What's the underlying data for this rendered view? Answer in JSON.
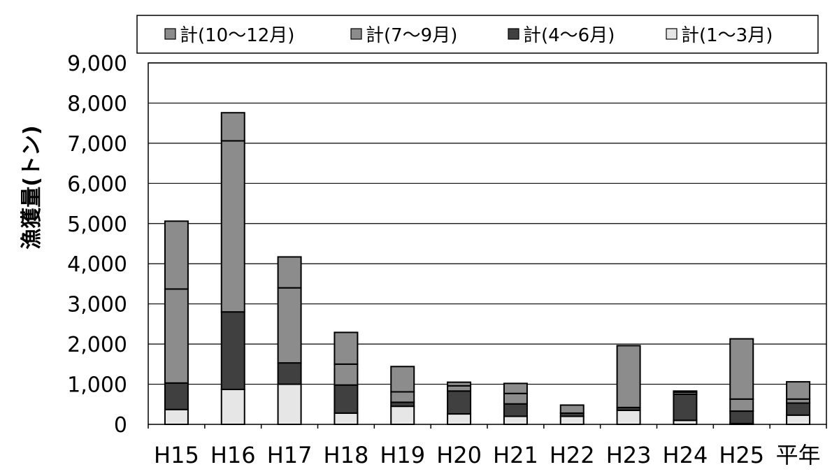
{
  "chart_data": {
    "type": "bar",
    "stacked": true,
    "categories": [
      "H15",
      "H16",
      "H17",
      "H18",
      "H19",
      "H20",
      "H21",
      "H22",
      "H23",
      "H24",
      "H25",
      "平年"
    ],
    "series": [
      {
        "name": "計(1～3月)",
        "color": "#e6e6e6",
        "values": [
          370,
          870,
          1000,
          280,
          450,
          260,
          200,
          200,
          350,
          100,
          20,
          230
        ]
      },
      {
        "name": "計(4～6月)",
        "color": "#404040",
        "values": [
          660,
          1930,
          530,
          700,
          100,
          570,
          310,
          80,
          70,
          650,
          310,
          300
        ]
      },
      {
        "name": "計(7～9月)",
        "color": "#8c8c8c",
        "values": [
          2340,
          4260,
          1870,
          520,
          260,
          130,
          260,
          0,
          0,
          50,
          300,
          100
        ]
      },
      {
        "name": "計(10～12月)",
        "color": "#8c8c8c",
        "values": [
          1690,
          700,
          770,
          790,
          630,
          90,
          250,
          200,
          1540,
          30,
          1500,
          430
        ]
      }
    ],
    "legend_order": [
      3,
      2,
      1,
      0
    ],
    "legend_position": "top",
    "ylabel": "漁獲量(トン)",
    "xlabel": "",
    "ylim": [
      0,
      9000
    ],
    "yticks": [
      0,
      1000,
      2000,
      3000,
      4000,
      5000,
      6000,
      7000,
      8000,
      9000
    ],
    "ytick_labels": [
      "0",
      "1,000",
      "2,000",
      "3,000",
      "4,000",
      "5,000",
      "6,000",
      "7,000",
      "8,000",
      "9,000"
    ],
    "grid": true
  }
}
